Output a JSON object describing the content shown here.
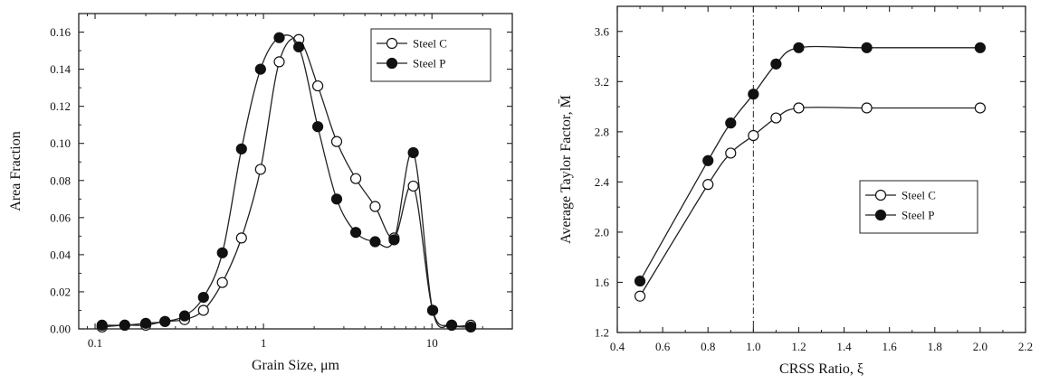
{
  "chart_data": [
    {
      "type": "line",
      "title": "",
      "xlabel": "Grain Size, μm",
      "ylabel": "Area Fraction",
      "xscale": "log",
      "xlim": [
        0.08,
        30
      ],
      "ylim": [
        0,
        0.17
      ],
      "xticks": [
        0.1,
        1,
        10
      ],
      "xtick_labels": [
        "0.1",
        "1",
        "10"
      ],
      "yticks": [
        0.0,
        0.02,
        0.04,
        0.06,
        0.08,
        0.1,
        0.12,
        0.14,
        0.16
      ],
      "ytick_labels": [
        "0.00",
        "0.02",
        "0.04",
        "0.06",
        "0.08",
        "0.10",
        "0.12",
        "0.14",
        "0.16"
      ],
      "grid": false,
      "legend": "top-right",
      "series": [
        {
          "name": "Steel C",
          "marker": "open-circle",
          "x": [
            0.11,
            0.15,
            0.2,
            0.26,
            0.34,
            0.44,
            0.57,
            0.74,
            0.96,
            1.24,
            1.62,
            2.1,
            2.72,
            3.53,
            4.6,
            5.96,
            7.75,
            10.1,
            13.1,
            17.0
          ],
          "y": [
            0.001,
            0.002,
            0.002,
            0.004,
            0.005,
            0.01,
            0.025,
            0.049,
            0.086,
            0.144,
            0.156,
            0.131,
            0.101,
            0.081,
            0.066,
            0.049,
            0.077,
            0.01,
            0.002,
            0.002
          ]
        },
        {
          "name": "Steel P",
          "marker": "filled-circle",
          "x": [
            0.11,
            0.15,
            0.2,
            0.26,
            0.34,
            0.44,
            0.57,
            0.74,
            0.96,
            1.24,
            1.62,
            2.1,
            2.72,
            3.53,
            4.6,
            5.96,
            7.75,
            10.1,
            13.1,
            17.0
          ],
          "y": [
            0.002,
            0.002,
            0.003,
            0.004,
            0.007,
            0.017,
            0.041,
            0.097,
            0.14,
            0.157,
            0.152,
            0.109,
            0.07,
            0.052,
            0.047,
            0.048,
            0.095,
            0.01,
            0.002,
            0.001
          ]
        }
      ]
    },
    {
      "type": "line",
      "title": "",
      "xlabel": "CRSS Ratio, ξ",
      "ylabel": "Average Taylor Factor, M̄",
      "xlim": [
        0.4,
        2.2
      ],
      "ylim": [
        1.2,
        3.8
      ],
      "xticks": [
        0.4,
        0.6,
        0.8,
        1.0,
        1.2,
        1.4,
        1.6,
        1.8,
        2.0,
        2.2
      ],
      "xtick_labels": [
        "0.4",
        "0.6",
        "0.8",
        "1.0",
        "1.2",
        "1.4",
        "1.6",
        "1.8",
        "2.0",
        "2.2"
      ],
      "yticks": [
        1.2,
        1.6,
        2.0,
        2.4,
        2.8,
        3.2,
        3.6
      ],
      "ytick_labels": [
        "1.2",
        "1.6",
        "2.0",
        "2.4",
        "2.8",
        "3.2",
        "3.6"
      ],
      "grid": false,
      "legend": "center-right",
      "reference_line_x": 1.0,
      "series": [
        {
          "name": "Steel C",
          "marker": "open-circle",
          "x": [
            0.5,
            0.8,
            0.9,
            1.0,
            1.1,
            1.2,
            1.5,
            2.0
          ],
          "y": [
            1.49,
            2.38,
            2.63,
            2.77,
            2.91,
            2.99,
            2.99,
            2.99
          ]
        },
        {
          "name": "Steel P",
          "marker": "filled-circle",
          "x": [
            0.5,
            0.8,
            0.9,
            1.0,
            1.1,
            1.2,
            1.5,
            2.0
          ],
          "y": [
            1.61,
            2.57,
            2.87,
            3.1,
            3.34,
            3.47,
            3.47,
            3.47
          ]
        }
      ]
    }
  ]
}
